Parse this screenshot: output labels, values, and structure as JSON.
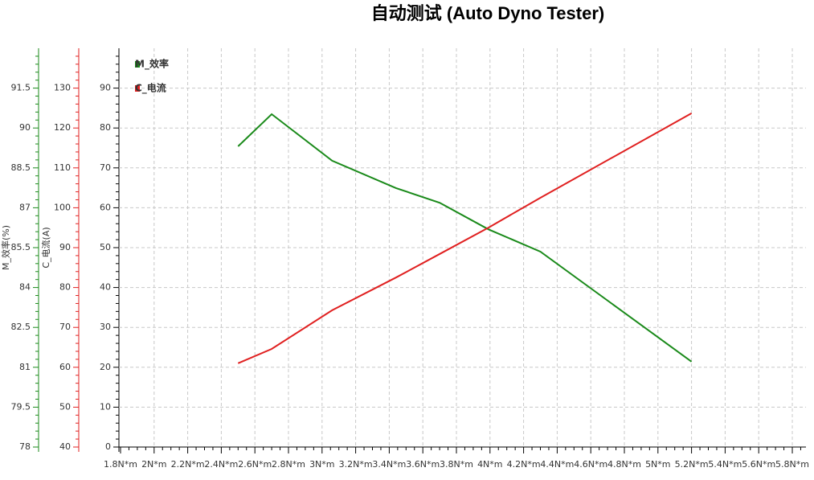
{
  "chart_data": {
    "type": "line",
    "title": "自动测试 (Auto Dyno Tester)",
    "x": [
      2.5,
      2.7,
      3.06,
      3.44,
      3.7,
      3.99,
      4.3,
      5.2
    ],
    "xlim": [
      1.8,
      5.88
    ],
    "xticks": [
      {
        "value": 1.8,
        "label": "1.8N*m"
      },
      {
        "value": 2,
        "label": "2N*m"
      },
      {
        "value": 2.2,
        "label": "2.2N*m"
      },
      {
        "value": 2.4,
        "label": "2.4N*m"
      },
      {
        "value": 2.6,
        "label": "2.6N*m"
      },
      {
        "value": 2.8,
        "label": "2.8N*m"
      },
      {
        "value": 3,
        "label": "3N*m"
      },
      {
        "value": 3.2,
        "label": "3.2N*m"
      },
      {
        "value": 3.4,
        "label": "3.4N*m"
      },
      {
        "value": 3.6,
        "label": "3.6N*m"
      },
      {
        "value": 3.8,
        "label": "3.8N*m"
      },
      {
        "value": 4,
        "label": "4N*m"
      },
      {
        "value": 4.2,
        "label": "4.2N*m"
      },
      {
        "value": 4.4,
        "label": "4.4N*m"
      },
      {
        "value": 4.6,
        "label": "4.6N*m"
      },
      {
        "value": 4.8,
        "label": "4.8N*m"
      },
      {
        "value": 5,
        "label": "5N*m"
      },
      {
        "value": 5.2,
        "label": "5.2N*m"
      },
      {
        "value": 5.4,
        "label": "5.4N*m"
      },
      {
        "value": 5.6,
        "label": "5.6N*m"
      },
      {
        "value": 5.8,
        "label": "5.8N*m"
      }
    ],
    "ylim": [
      0,
      100
    ],
    "yticks": [
      0,
      10,
      20,
      30,
      40,
      50,
      60,
      70,
      80,
      90
    ],
    "y2label": "C_电流(A)",
    "y2lim": [
      40,
      140
    ],
    "y2ticks": [
      40,
      50,
      60,
      70,
      80,
      90,
      100,
      110,
      120,
      130
    ],
    "y3label": "M_效率(%)",
    "y3lim": [
      78,
      93
    ],
    "y3ticks": [
      78,
      79.5,
      81,
      82.5,
      84,
      85.5,
      87,
      88.5,
      90,
      91.5
    ],
    "grid": true,
    "series": [
      {
        "name": "M_效率",
        "color": "#1a8a1a",
        "axis": "y3",
        "values": [
          89.31,
          90.52,
          88.77,
          87.74,
          87.19,
          86.19,
          85.35,
          81.21
        ]
      },
      {
        "name": "C_电流",
        "color": "#e02020",
        "axis": "y2",
        "values": [
          61.0,
          64.6,
          74.3,
          82.5,
          88.4,
          95.0,
          102.5,
          123.7
        ]
      }
    ]
  }
}
